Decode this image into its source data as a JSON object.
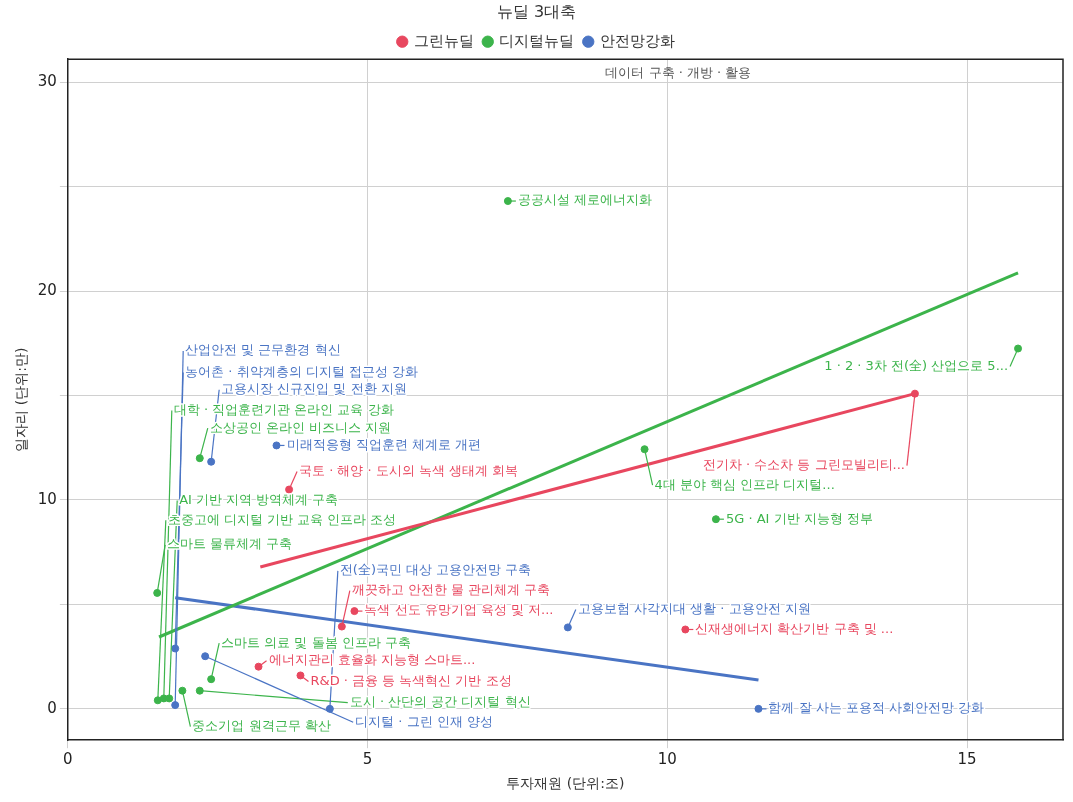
{
  "chart_data": {
    "type": "scatter",
    "xlabel": "투자재원 (단위:조)",
    "ylabel": "일자리 (단위:만)",
    "legend_title": "뉴딜 3대축",
    "legend": "top",
    "grid": true,
    "marker": "circle",
    "xlim": [
      0,
      16.6
    ],
    "xticks": [
      0,
      5,
      10,
      15
    ],
    "ylim": [
      -1.5,
      31.1
    ],
    "yticks": [
      0,
      {
        "value": 5,
        "label": null
      },
      10,
      {
        "value": 15,
        "label": null
      },
      20,
      {
        "value": 25,
        "label": null
      },
      30
    ],
    "series": [
      {
        "name": "그린뉴딜",
        "color": "#e8475f",
        "x": [
          3.69,
          4.78,
          4.57,
          3.18,
          3.88,
          10.3,
          14.13
        ],
        "values": [
          10.5,
          4.68,
          3.94,
          2.02,
          1.6,
          3.8,
          15.09
        ]
      },
      {
        "name": "디지털뉴딜",
        "color": "#3cb44b",
        "x": [
          7.34,
          15.85,
          9.62,
          10.81,
          2.2,
          1.49,
          1.91,
          2.39,
          2.2,
          1.5,
          1.6,
          1.69
        ],
        "values": [
          24.31,
          17.25,
          12.43,
          9.08,
          12.0,
          5.55,
          0.87,
          1.42,
          0.87,
          0.41,
          0.5,
          0.5
        ]
      },
      {
        "name": "안전망강화",
        "color": "#4a74c4",
        "x": [
          3.48,
          2.39,
          1.79,
          2.29,
          8.34,
          11.52,
          4.37,
          1.79
        ],
        "values": [
          12.61,
          11.83,
          2.89,
          2.52,
          3.9,
          0,
          0,
          0.18
        ]
      },
      {
        "type": "line",
        "marker": "none",
        "color": "#e8475f",
        "x": [
          3.21,
          14.13
        ],
        "values": [
          6.79,
          15.09
        ]
      },
      {
        "type": "line",
        "marker": "none",
        "color": "#3cb44b",
        "x": [
          1.52,
          15.85
        ],
        "values": [
          3.44,
          20.87
        ]
      },
      {
        "type": "line",
        "marker": "none",
        "color": "#4a74c4",
        "x": [
          1.79,
          11.52
        ],
        "values": [
          5.32,
          1.38
        ]
      }
    ],
    "annotations": [
      "데이터 구축 · 개방 · 활용",
      {
        "text": "국토 · 해양 · 도시의 녹색 생태계 회복",
        "x": 3.69,
        "y": 10.5
      },
      {
        "text": "녹색 선도 유망기업 육성 및 저...",
        "x": 4.78,
        "y": 4.68
      },
      {
        "text": "깨끗하고 안전한 물 관리체계 구축",
        "x": 4.57,
        "y": 3.94
      },
      {
        "text": "에너지관리 효율화 지능형 스마트...",
        "x": 3.18,
        "y": 2.02
      },
      {
        "text": "R&D · 금융 등 녹색혁신 기반 조성",
        "x": 3.88,
        "y": 1.6
      },
      {
        "text": "신재생에너지 확산기반 구축 및 ...",
        "x": 10.3,
        "y": 3.8
      },
      {
        "text": "전기차 · 수소차 등 그린모빌리티...",
        "x": 14.13,
        "y": 15.09
      },
      {
        "text": "공공시설 제로에너지화",
        "x": 7.34,
        "y": 24.31
      },
      {
        "text": "1 · 2 · 3차 전(全) 산업으로 5...",
        "x": 15.85,
        "y": 17.25
      },
      {
        "text": "4대 분야 핵심 인프라 디지털...",
        "x": 9.62,
        "y": 12.43
      },
      {
        "text": "5G · AI 기반 지능형 정부",
        "x": 10.81,
        "y": 9.08
      },
      {
        "text": "소상공인 온라인 비즈니스 지원",
        "x": 2.2,
        "y": 12.0
      },
      {
        "text": "스마트 물류체계 구축",
        "x": 1.49,
        "y": 5.55
      },
      {
        "text": "중소기업 원격근무 확산",
        "x": 1.91,
        "y": 0.87
      },
      {
        "text": "스마트 의료 및 돌봄 인프라 구축",
        "x": 2.39,
        "y": 1.42
      },
      {
        "text": "도시 · 산단의 공간 디지털 혁신",
        "x": 2.2,
        "y": 0.87
      },
      {
        "text": "초중고에 디지털 기반 교육 인프라 조성",
        "x": 1.5,
        "y": 0.41
      },
      {
        "text": "대학 · 직업훈련기관 온라인 교육 강화",
        "x": 1.6,
        "y": 0.5
      },
      {
        "text": "AI 기반 지역 방역체계 구축",
        "x": 1.69,
        "y": 0.5
      },
      {
        "text": "미래적응형 직업훈련 체계로 개편",
        "x": 3.48,
        "y": 12.61
      },
      {
        "text": "고용시장 신규진입 및 전환 지원",
        "x": 2.39,
        "y": 11.83
      },
      {
        "text": "농어촌 · 취약계층의 디지털 접근성 강화",
        "x": 1.79,
        "y": 2.89
      },
      {
        "text": "디지털 · 그린 인재 양성",
        "x": 2.29,
        "y": 2.52
      },
      {
        "text": "고용보험 사각지대 생활 · 고용안전 지원",
        "x": 8.34,
        "y": 3.9
      },
      {
        "text": "함께 잘 사는 포용적 사회안전망 강화",
        "x": 11.52,
        "y": 0
      },
      {
        "text": "전(全)국민 대상 고용안전망 구축",
        "x": 4.37,
        "y": 0
      },
      {
        "text": "산업안전 및 근무환경 혁신",
        "x": 1.79,
        "y": 0.18
      }
    ]
  }
}
